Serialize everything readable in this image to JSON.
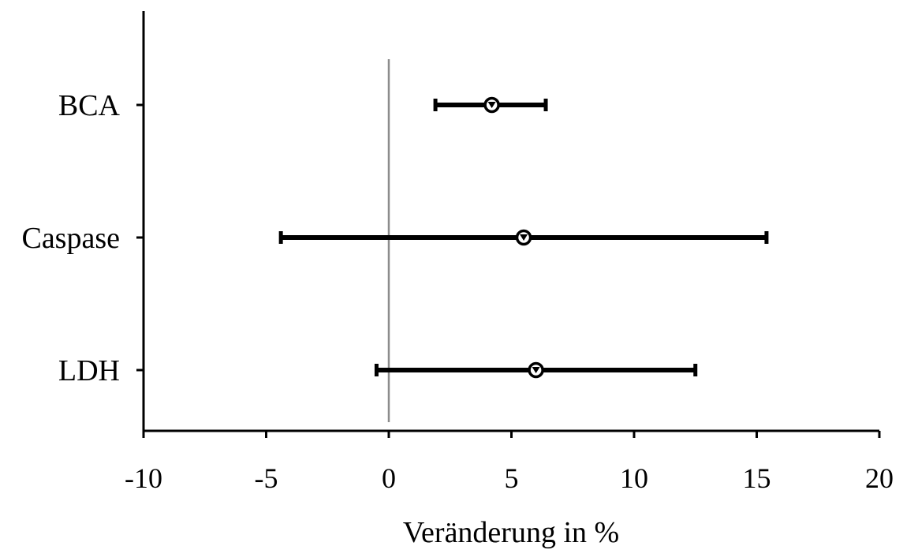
{
  "chart_data": {
    "type": "forest",
    "title": "",
    "xlabel": "Veränderung in %",
    "ylabel": "",
    "xlim": [
      -10,
      20
    ],
    "xticks": [
      -10,
      -5,
      0,
      5,
      10,
      15,
      20
    ],
    "xtick_labels": [
      "-10",
      "-5",
      "0",
      "5",
      "10",
      "15",
      "20"
    ],
    "reference_line": 0,
    "grid": false,
    "categories": [
      "BCA",
      "Caspase",
      "LDH"
    ],
    "estimates": [
      4.2,
      5.5,
      6.0
    ],
    "lower": [
      1.9,
      -4.4,
      -0.5
    ],
    "upper": [
      6.4,
      15.4,
      12.5
    ]
  },
  "colors": {
    "marks": "#000000",
    "reference_line": "#8c8c8c",
    "background": "#ffffff"
  }
}
